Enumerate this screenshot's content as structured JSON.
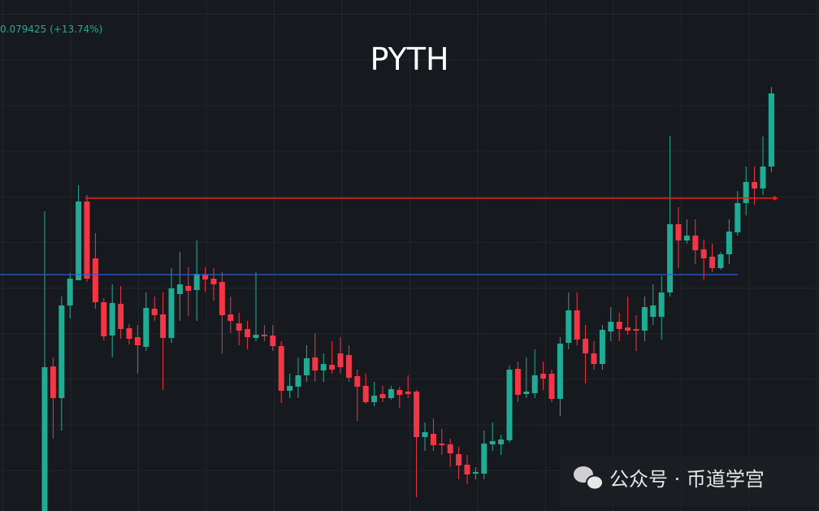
{
  "chart_data": {
    "type": "candlestick",
    "title": "PYTH",
    "price_label": "0.079425 (+13.74%)",
    "watermark": "公众号 · 币道学宫",
    "up_color": "#22ab94",
    "down_color": "#f23645",
    "ylim": [
      0,
      629
    ],
    "open": [
      0,
      178,
      139,
      253,
      284,
      381,
      311,
      257,
      216,
      255,
      225,
      214,
      202,
      249,
      242,
      213,
      267,
      277,
      272,
      291,
      286,
      282,
      242,
      231,
      224,
      213,
      217,
      216,
      203,
      148,
      153,
      167,
      189,
      173,
      180,
      194,
      192,
      166,
      154,
      134,
      144,
      139,
      149,
      147,
      147,
      91,
      95,
      83,
      82,
      70,
      57,
      46,
      46,
      82,
      82,
      87,
      175,
      144,
      145,
      169,
      169,
      138,
      207,
      247,
      212,
      194,
      181,
      221,
      233,
      226,
      224,
      222,
      239,
      239,
      269,
      353,
      333,
      339,
      322,
      313,
      299,
      316,
      343,
      379,
      405,
      397,
      424
    ],
    "high": [
      369,
      189,
      264,
      293,
      401,
      389,
      342,
      262,
      279,
      277,
      230,
      229,
      269,
      264,
      269,
      299,
      319,
      300,
      333,
      300,
      299,
      294,
      264,
      244,
      234,
      294,
      229,
      229,
      209,
      169,
      189,
      204,
      219,
      194,
      209,
      214,
      204,
      174,
      169,
      159,
      154,
      154,
      153,
      167,
      149,
      109,
      114,
      101,
      89,
      79,
      69,
      54,
      99,
      109,
      94,
      179,
      184,
      189,
      199,
      184,
      174,
      214,
      269,
      269,
      229,
      209,
      229,
      251,
      244,
      264,
      241,
      264,
      279,
      289,
      462,
      374,
      359,
      359,
      334,
      329,
      319,
      359,
      394,
      424,
      424,
      461,
      522
    ],
    "low": [
      0,
      89,
      99,
      237,
      284,
      282,
      249,
      210,
      189,
      212,
      205,
      169,
      197,
      234,
      149,
      207,
      234,
      240,
      234,
      270,
      259,
      194,
      219,
      204,
      199,
      209,
      209,
      197,
      133,
      139,
      139,
      159,
      159,
      159,
      169,
      169,
      159,
      111,
      132,
      129,
      134,
      137,
      127,
      139,
      17,
      74,
      74,
      69,
      54,
      39,
      33,
      39,
      39,
      74,
      69,
      84,
      134,
      139,
      139,
      149,
      134,
      117,
      199,
      204,
      157,
      174,
      174,
      209,
      209,
      217,
      197,
      209,
      229,
      211,
      264,
      299,
      329,
      304,
      284,
      294,
      297,
      304,
      339,
      364,
      377,
      389,
      417
    ],
    "close": [
      177,
      139,
      253,
      286,
      381,
      286,
      257,
      215,
      256,
      224,
      212,
      204,
      250,
      241,
      213,
      274,
      279,
      271,
      292,
      285,
      279,
      241,
      234,
      222,
      214,
      217,
      215,
      203,
      148,
      154,
      167,
      188,
      173,
      181,
      174,
      177,
      164,
      153,
      134,
      142,
      139,
      150,
      143,
      144,
      91,
      97,
      81,
      81,
      71,
      56,
      45,
      48,
      83,
      86,
      88,
      174,
      143,
      147,
      167,
      163,
      138,
      206,
      247,
      211,
      194,
      181,
      223,
      233,
      224,
      222,
      222,
      251,
      253,
      269,
      353,
      333,
      339,
      321,
      311,
      299,
      316,
      344,
      379,
      405,
      397,
      424,
      514
    ],
    "levels": [
      {
        "value": 385,
        "color": "#e8231f"
      },
      {
        "value": 291,
        "color": "#2f5bd1"
      }
    ]
  }
}
